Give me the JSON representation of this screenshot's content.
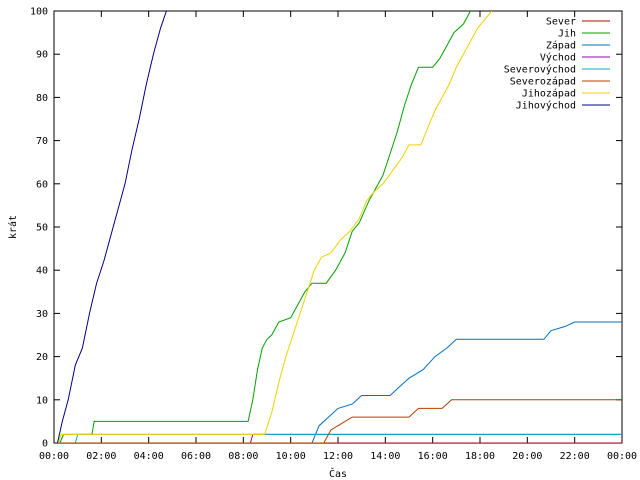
{
  "chart_data": {
    "type": "line",
    "title": "",
    "xlabel": "Čas",
    "ylabel": "krát",
    "xlim": [
      0,
      24
    ],
    "ylim": [
      0,
      100
    ],
    "x_ticks": [
      "00:00",
      "02:00",
      "04:00",
      "06:00",
      "08:00",
      "10:00",
      "12:00",
      "14:00",
      "16:00",
      "18:00",
      "20:00",
      "22:00",
      "00:00"
    ],
    "y_ticks": [
      0,
      10,
      20,
      30,
      40,
      50,
      60,
      70,
      80,
      90,
      100
    ],
    "grid": false,
    "legend_position": "top-right",
    "series": [
      {
        "name": "Sever",
        "color": "#c00000",
        "points": [
          [
            0,
            0
          ],
          [
            24,
            0
          ]
        ]
      },
      {
        "name": "Jih",
        "color": "#00a000",
        "points": [
          [
            0,
            0
          ],
          [
            0.25,
            0
          ],
          [
            0.4,
            2
          ],
          [
            1.6,
            2
          ],
          [
            1.7,
            5
          ],
          [
            8.2,
            5
          ],
          [
            8.4,
            10
          ],
          [
            8.6,
            17
          ],
          [
            8.8,
            22
          ],
          [
            9.0,
            24
          ],
          [
            9.2,
            25
          ],
          [
            9.5,
            28
          ],
          [
            10.0,
            29
          ],
          [
            10.3,
            32
          ],
          [
            10.6,
            35
          ],
          [
            10.9,
            37
          ],
          [
            11.5,
            37
          ],
          [
            11.9,
            40
          ],
          [
            12.3,
            44
          ],
          [
            12.6,
            49
          ],
          [
            12.9,
            51
          ],
          [
            13.3,
            56
          ],
          [
            13.6,
            59
          ],
          [
            13.9,
            62
          ],
          [
            14.2,
            67
          ],
          [
            14.5,
            72
          ],
          [
            14.8,
            78
          ],
          [
            15.1,
            83
          ],
          [
            15.4,
            87
          ],
          [
            16.0,
            87
          ],
          [
            16.3,
            89
          ],
          [
            16.6,
            92
          ],
          [
            16.9,
            95
          ],
          [
            17.3,
            97
          ],
          [
            17.6,
            100
          ]
        ]
      },
      {
        "name": "Západ",
        "color": "#0070c0",
        "points": [
          [
            0,
            0
          ],
          [
            10.9,
            0
          ],
          [
            11.2,
            4
          ],
          [
            11.6,
            6
          ],
          [
            12.0,
            8
          ],
          [
            12.6,
            9
          ],
          [
            13.0,
            11
          ],
          [
            14.2,
            11
          ],
          [
            14.6,
            13
          ],
          [
            15.0,
            15
          ],
          [
            15.6,
            17
          ],
          [
            16.1,
            20
          ],
          [
            16.6,
            22
          ],
          [
            17.0,
            24
          ],
          [
            20.7,
            24
          ],
          [
            21.0,
            26
          ],
          [
            21.6,
            27
          ],
          [
            22.0,
            28
          ],
          [
            24,
            28
          ]
        ]
      },
      {
        "name": "Východ",
        "color": "#a000a0",
        "points": [
          [
            0,
            0
          ],
          [
            8.3,
            0
          ],
          [
            8.4,
            2
          ],
          [
            24,
            2
          ]
        ]
      },
      {
        "name": "Severovýchod",
        "color": "#00b0c0",
        "points": [
          [
            0,
            0
          ],
          [
            0.9,
            0
          ],
          [
            1.0,
            2
          ],
          [
            24,
            2
          ]
        ]
      },
      {
        "name": "Severozápad",
        "color": "#b04000",
        "points": [
          [
            0,
            0
          ],
          [
            11.4,
            0
          ],
          [
            11.7,
            3
          ],
          [
            12.0,
            4
          ],
          [
            12.6,
            6
          ],
          [
            15.0,
            6
          ],
          [
            15.4,
            8
          ],
          [
            16.4,
            8
          ],
          [
            16.8,
            10
          ],
          [
            24,
            10
          ]
        ]
      },
      {
        "name": "Jihozápad",
        "color": "#f0d000",
        "points": [
          [
            0,
            0
          ],
          [
            0.2,
            0
          ],
          [
            0.3,
            2
          ],
          [
            8.9,
            2
          ],
          [
            9.2,
            7
          ],
          [
            9.5,
            14
          ],
          [
            9.8,
            20
          ],
          [
            10.1,
            25
          ],
          [
            10.4,
            30
          ],
          [
            10.7,
            35
          ],
          [
            11.0,
            40
          ],
          [
            11.3,
            43
          ],
          [
            11.7,
            44
          ],
          [
            12.1,
            47
          ],
          [
            12.5,
            49
          ],
          [
            12.9,
            52
          ],
          [
            13.2,
            56
          ],
          [
            13.5,
            58
          ],
          [
            13.9,
            60
          ],
          [
            14.3,
            63
          ],
          [
            14.7,
            66
          ],
          [
            15.0,
            69
          ],
          [
            15.5,
            69
          ],
          [
            15.8,
            73
          ],
          [
            16.1,
            77
          ],
          [
            16.4,
            80
          ],
          [
            16.7,
            83
          ],
          [
            17.0,
            87
          ],
          [
            17.3,
            90
          ],
          [
            17.6,
            93
          ],
          [
            17.9,
            96
          ],
          [
            18.2,
            98
          ],
          [
            18.5,
            100
          ]
        ]
      },
      {
        "name": "Jihovýchod",
        "color": "#00008b",
        "points": [
          [
            0,
            0
          ],
          [
            0.15,
            0
          ],
          [
            0.35,
            5
          ],
          [
            0.6,
            10
          ],
          [
            0.9,
            18
          ],
          [
            1.2,
            22
          ],
          [
            1.5,
            30
          ],
          [
            1.8,
            37
          ],
          [
            2.1,
            42
          ],
          [
            2.4,
            48
          ],
          [
            2.7,
            54
          ],
          [
            3.0,
            60
          ],
          [
            3.3,
            68
          ],
          [
            3.6,
            75
          ],
          [
            3.9,
            83
          ],
          [
            4.2,
            90
          ],
          [
            4.5,
            96
          ],
          [
            4.75,
            100
          ]
        ]
      }
    ]
  }
}
